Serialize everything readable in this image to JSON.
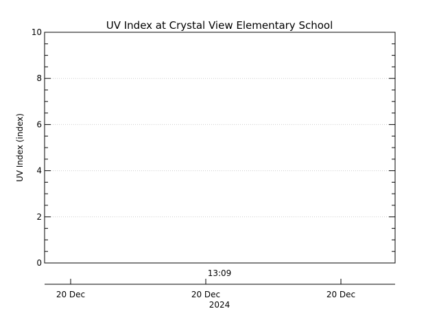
{
  "chart_data": {
    "type": "line",
    "title": "UV Index at Crystal View Elementary School",
    "ylabel": "UV Index (index)",
    "ylim": [
      0,
      10
    ],
    "yticks": [
      0,
      2,
      4,
      6,
      8,
      10
    ],
    "y_minor_step": 0.5,
    "grid": true,
    "series": [],
    "time_marker_label": "13:09",
    "date_ticks": [
      "20 Dec",
      "20 Dec",
      "20 Dec"
    ],
    "year_label": "2024"
  },
  "colors": {
    "axis": "#000000",
    "grid": "#cccccc",
    "background": "#ffffff"
  }
}
